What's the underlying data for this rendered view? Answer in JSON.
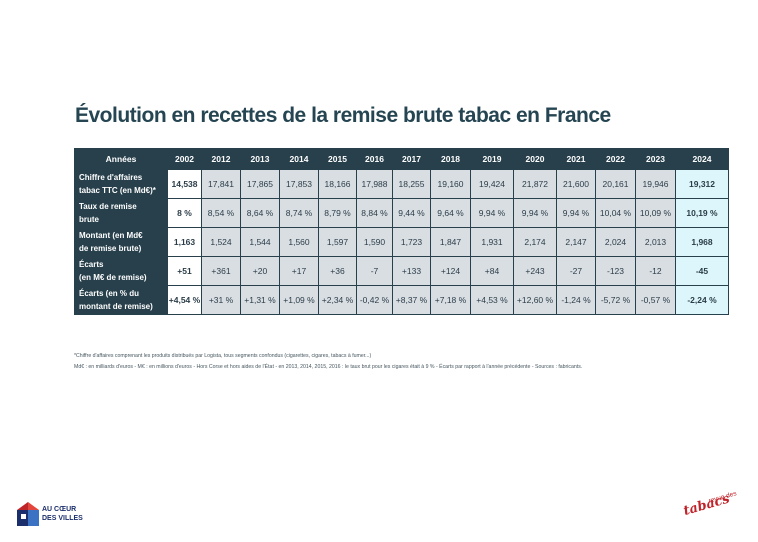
{
  "title": "Évolution en recettes de la remise brute tabac en France",
  "table": {
    "header_label": "Années",
    "years": [
      "2002",
      "2012",
      "2013",
      "2014",
      "2015",
      "2016",
      "2017",
      "2018",
      "2019",
      "2020",
      "2021",
      "2022",
      "2023",
      "2024"
    ],
    "rows": [
      {
        "label_lines": [
          "Chiffre d'affaires",
          "tabac TTC (en Md€)*"
        ],
        "values": [
          "14,538",
          "17,841",
          "17,865",
          "17,853",
          "18,166",
          "17,988",
          "18,255",
          "19,160",
          "19,424",
          "21,872",
          "21,600",
          "20,161",
          "19,946",
          "19,312"
        ]
      },
      {
        "label_lines": [
          "Taux de remise",
          "brute"
        ],
        "values": [
          "8 %",
          "8,54 %",
          "8,64 %",
          "8,74 %",
          "8,79 %",
          "8,84 %",
          "9,44 %",
          "9,64 %",
          "9,94 %",
          "9,94 %",
          "9,94 %",
          "10,04 %",
          "10,09 %",
          "10,19 %"
        ]
      },
      {
        "label_lines": [
          "Montant (en Md€",
          "de remise brute)"
        ],
        "values": [
          "1,163",
          "1,524",
          "1,544",
          "1,560",
          "1,597",
          "1,590",
          "1,723",
          "1,847",
          "1,931",
          "2,174",
          "2,147",
          "2,024",
          "2,013",
          "1,968"
        ]
      },
      {
        "label_lines": [
          "Écarts",
          "(en M€ de remise)"
        ],
        "values": [
          "+51",
          "+361",
          "+20",
          "+17",
          "+36",
          "-7",
          "+133",
          "+124",
          "+84",
          "+243",
          "-27",
          "-123",
          "-12",
          "-45"
        ]
      },
      {
        "label_lines": [
          "Écarts (en % du",
          "montant de remise)"
        ],
        "values": [
          "+4,54 %",
          "+31 %",
          "+1,31 %",
          "+1,09 %",
          "+2,34 %",
          "-0,42 %",
          "+8,37 %",
          "+7,18 %",
          "+4,53 %",
          "+12,60 %",
          "-1,24 %",
          "-5,72 %",
          "-0,57 %",
          "-2,24 %"
        ]
      }
    ]
  },
  "notes": [
    "*Chiffre d'affaires comprenant les produits distribués par Logista, tous segments confondus (cigarettes, cigares, tabacs à fumer...)",
    "Md€ : en milliards d'euros - M€ : en millions d'euros - Hors Corse et hors aides de l'État - en 2013, 2014, 2015, 2016 : le taux brut pour les cigares était à 9 % - Écarts par rapport à l'année précédente - Sources : fabricants."
  ],
  "logos": {
    "left": {
      "line1": "AU CŒUR",
      "line2": "DES VILLES"
    },
    "right": {
      "small": "revue des",
      "big": "tabacs"
    }
  },
  "colors": {
    "header": "#27404c",
    "cell": "#d9dee3",
    "highlight": "#dcf6fb",
    "title": "#254552",
    "brand_red": "#c0242b",
    "brand_navy": "#1b2f6d"
  }
}
